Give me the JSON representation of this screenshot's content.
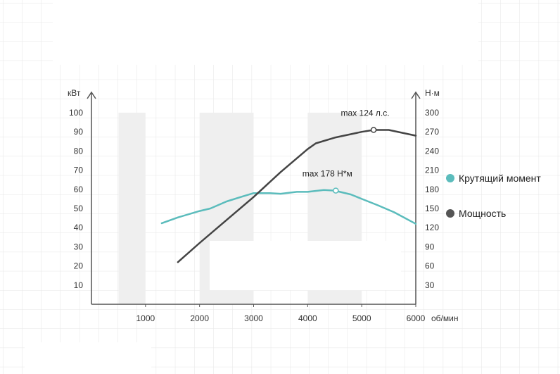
{
  "chart_data": {
    "type": "line",
    "x_unit": "об/мин",
    "y_left_unit": "кВт",
    "y_right_unit": "Н·м",
    "x_ticks": [
      1000,
      2000,
      3000,
      4000,
      5000,
      6000
    ],
    "y_left_ticks": [
      10,
      20,
      30,
      40,
      50,
      60,
      70,
      80,
      90,
      100
    ],
    "y_right_ticks": [
      30,
      60,
      90,
      120,
      150,
      180,
      210,
      240,
      270,
      300
    ],
    "xlim": [
      0,
      6000
    ],
    "ylim_left": [
      0,
      100
    ],
    "ylim_right": [
      0,
      300
    ],
    "grid": true,
    "legend_position": "right",
    "series": [
      {
        "name": "Крутящий момент",
        "axis": "right",
        "color": "#5bbcbc",
        "x": [
          1300,
          1600,
          2000,
          2200,
          2500,
          2800,
          3000,
          3300,
          3500,
          3800,
          4000,
          4300,
          4500,
          4800,
          5000,
          5300,
          5600,
          6000
        ],
        "y": [
          127,
          136,
          146,
          150,
          161,
          169,
          174,
          174,
          173,
          176,
          176,
          179,
          178,
          172,
          165,
          155,
          144,
          126
        ]
      },
      {
        "name": "Мощность",
        "axis": "left",
        "color": "#444444",
        "x": [
          1600,
          2000,
          2500,
          3000,
          3500,
          4000,
          4150,
          4500,
          5000,
          5220,
          5500,
          6000
        ],
        "y": [
          22,
          32,
          44,
          56,
          69,
          81,
          84,
          87,
          90,
          91,
          91,
          88
        ]
      }
    ],
    "annotations": [
      {
        "text": "max 124 л.с.",
        "series": "Мощность",
        "x": 5220,
        "y": 91
      },
      {
        "text": "max 178 Н*м",
        "series": "Крутящий момент",
        "x": 4520,
        "y": 178
      }
    ]
  }
}
